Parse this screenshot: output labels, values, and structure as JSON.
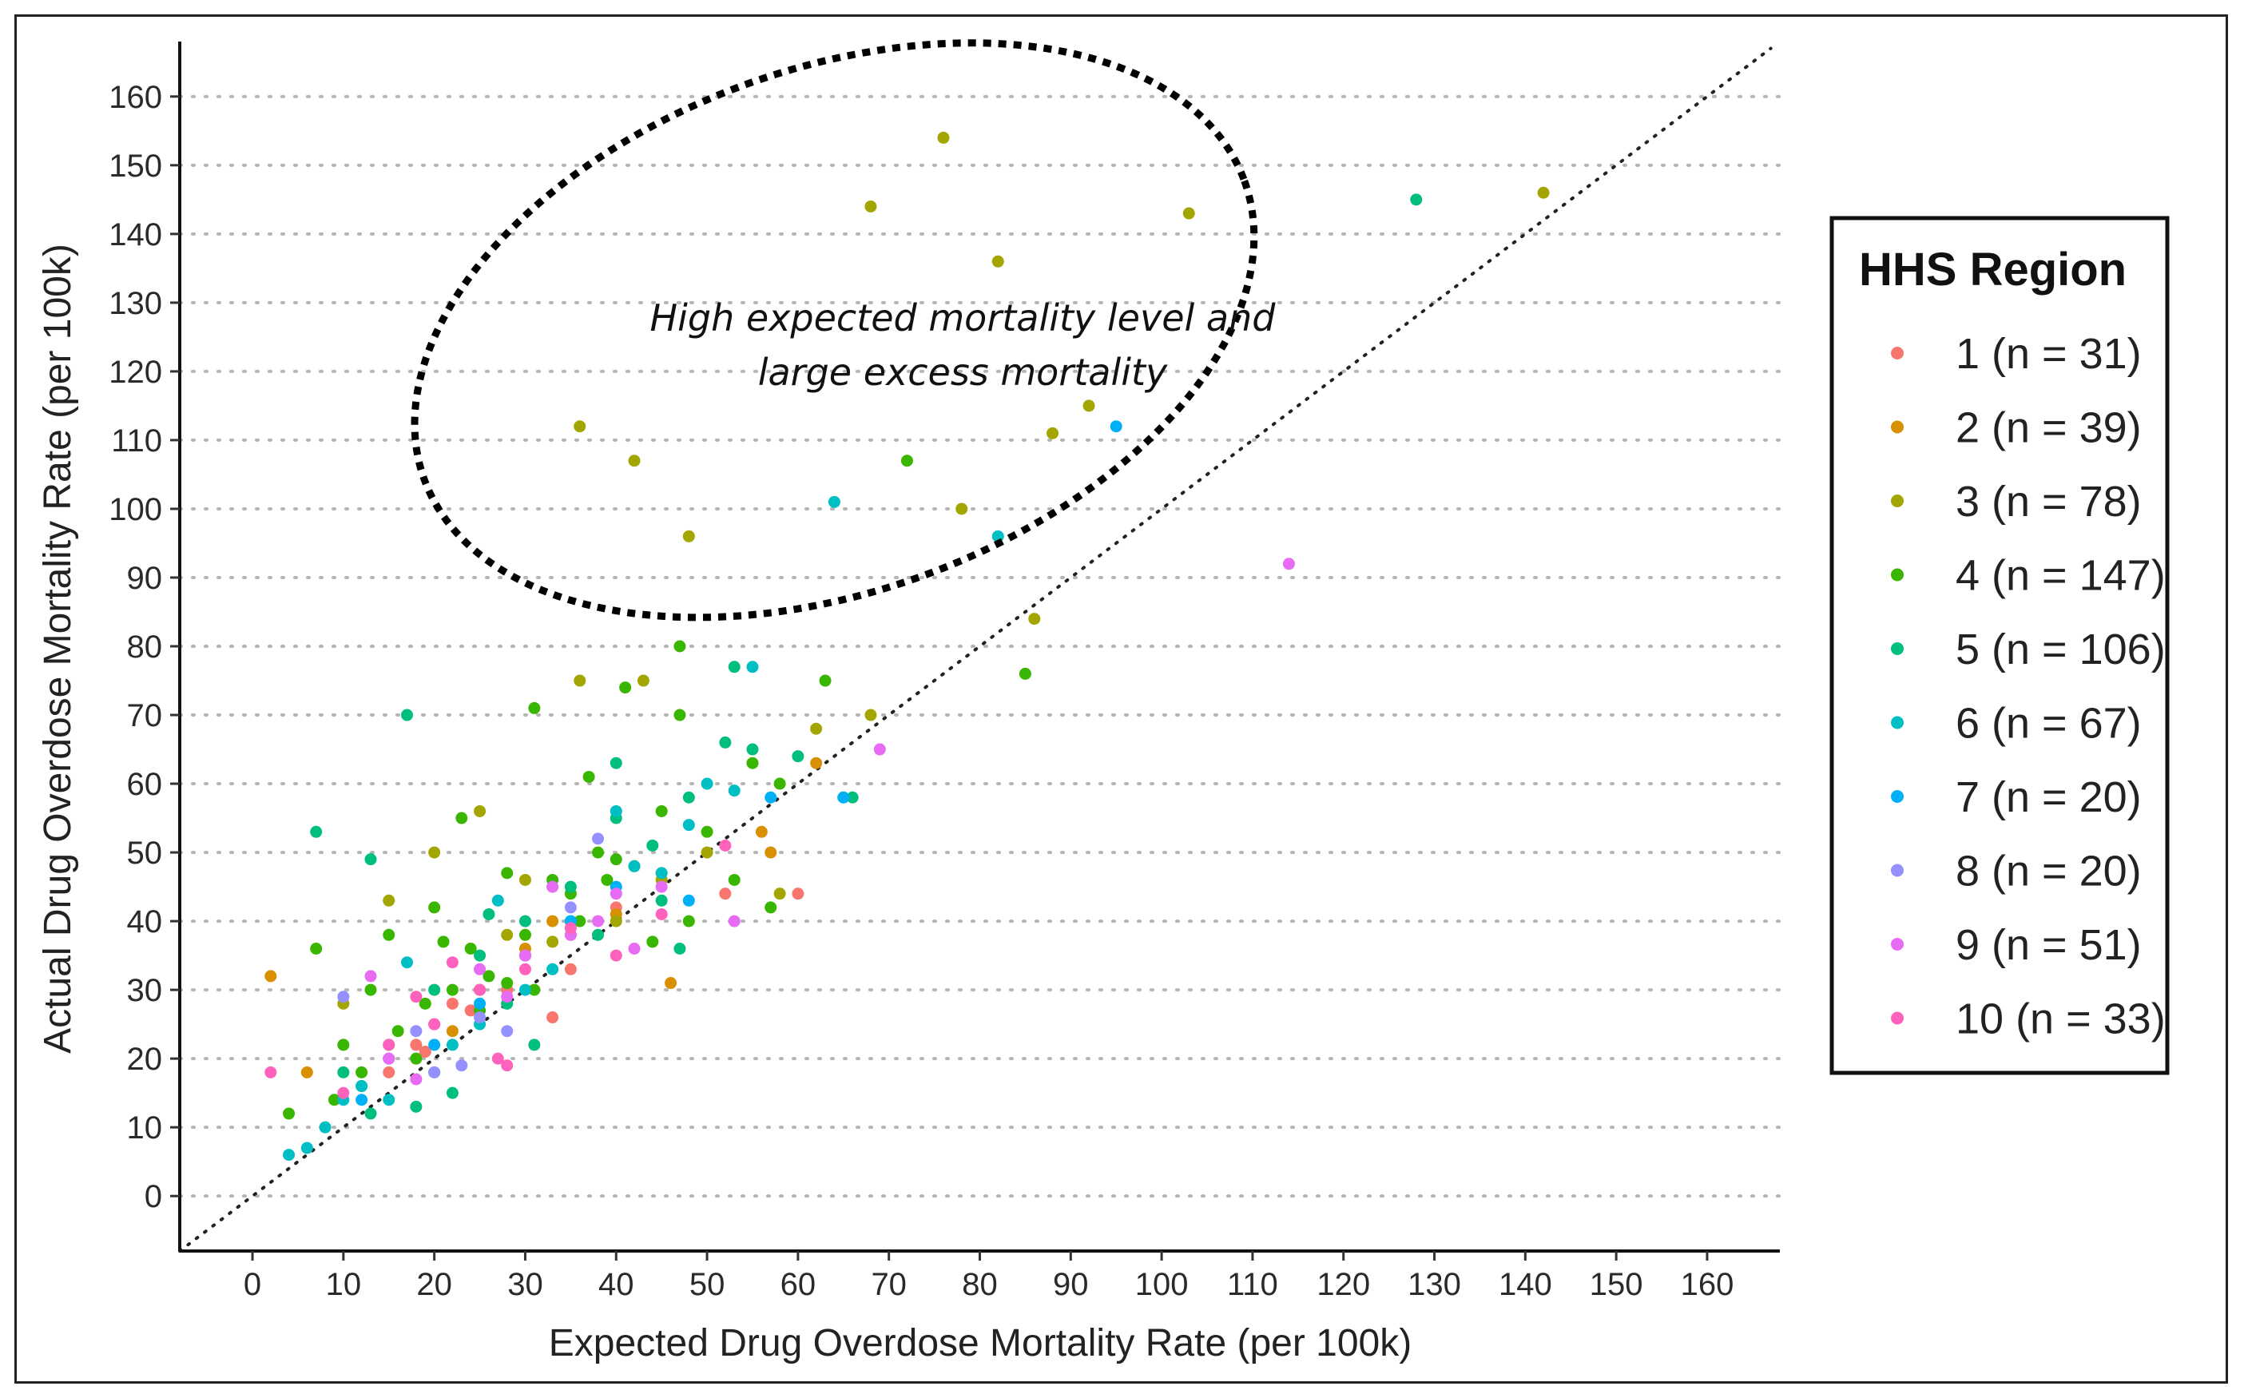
{
  "chart_data": {
    "type": "scatter",
    "xlabel": "Expected Drug Overdose Mortality Rate (per 100k)",
    "ylabel": "Actual Drug Overdose Mortality Rate (per 100k)",
    "xlim": [
      -8,
      168
    ],
    "ylim": [
      -8,
      168
    ],
    "xticks": [
      0,
      10,
      20,
      30,
      40,
      50,
      60,
      70,
      80,
      90,
      100,
      110,
      120,
      130,
      140,
      150,
      160
    ],
    "yticks": [
      0,
      10,
      20,
      30,
      40,
      50,
      60,
      70,
      80,
      90,
      100,
      110,
      120,
      130,
      140,
      150,
      160
    ],
    "grid": "horizontal dotted",
    "reference_line": "y = x (dotted)",
    "legend": {
      "title": "HHS Region",
      "placement": "right",
      "entries": [
        {
          "label": "1 (n = 31)",
          "color": "#F8766D"
        },
        {
          "label": "2 (n = 39)",
          "color": "#D89000"
        },
        {
          "label": "3 (n = 78)",
          "color": "#A3A500"
        },
        {
          "label": "4 (n = 147)",
          "color": "#39B600"
        },
        {
          "label": "5 (n = 106)",
          "color": "#00BF7D"
        },
        {
          "label": "6 (n = 67)",
          "color": "#00BFC4"
        },
        {
          "label": "7 (n = 20)",
          "color": "#00B0F6"
        },
        {
          "label": "8 (n = 20)",
          "color": "#9590FF"
        },
        {
          "label": "9 (n = 51)",
          "color": "#E76BF3"
        },
        {
          "label": "10 (n = 33)",
          "color": "#FF62BC"
        }
      ]
    },
    "annotation": {
      "lines": [
        "High expected mortality level and",
        "large excess mortality"
      ],
      "ellipse_center": [
        64,
        126
      ],
      "ellipse_radii": [
        48,
        38
      ],
      "ellipse_rotation_deg": -20
    },
    "series": [
      {
        "region": 1,
        "points": [
          [
            20,
            25
          ],
          [
            22,
            28
          ],
          [
            25,
            30
          ],
          [
            18,
            22
          ],
          [
            30,
            35
          ],
          [
            35,
            33
          ],
          [
            28,
            30
          ],
          [
            15,
            18
          ],
          [
            40,
            42
          ],
          [
            45,
            47
          ],
          [
            52,
            44
          ],
          [
            60,
            44
          ],
          [
            33,
            26
          ],
          [
            24,
            27
          ],
          [
            19,
            21
          ]
        ]
      },
      {
        "region": 2,
        "points": [
          [
            2,
            32
          ],
          [
            6,
            18
          ],
          [
            30,
            36
          ],
          [
            35,
            38
          ],
          [
            40,
            41
          ],
          [
            46,
            31
          ],
          [
            56,
            53
          ],
          [
            57,
            50
          ],
          [
            62,
            63
          ],
          [
            25,
            30
          ],
          [
            22,
            24
          ],
          [
            33,
            40
          ]
        ]
      },
      {
        "region": 3,
        "points": [
          [
            36,
            112
          ],
          [
            42,
            107
          ],
          [
            48,
            96
          ],
          [
            68,
            144
          ],
          [
            76,
            154
          ],
          [
            82,
            136
          ],
          [
            88,
            111
          ],
          [
            92,
            115
          ],
          [
            103,
            143
          ],
          [
            142,
            146
          ],
          [
            78,
            100
          ],
          [
            86,
            84
          ],
          [
            68,
            70
          ],
          [
            36,
            75
          ],
          [
            43,
            75
          ],
          [
            25,
            56
          ],
          [
            30,
            46
          ],
          [
            20,
            50
          ],
          [
            15,
            43
          ],
          [
            40,
            40
          ],
          [
            45,
            46
          ],
          [
            50,
            50
          ],
          [
            62,
            68
          ],
          [
            58,
            44
          ],
          [
            10,
            28
          ],
          [
            28,
            38
          ],
          [
            33,
            37
          ]
        ]
      },
      {
        "region": 4,
        "points": [
          [
            72,
            107
          ],
          [
            47,
            80
          ],
          [
            85,
            76
          ],
          [
            41,
            74
          ],
          [
            31,
            71
          ],
          [
            37,
            61
          ],
          [
            23,
            55
          ],
          [
            28,
            47
          ],
          [
            20,
            42
          ],
          [
            15,
            38
          ],
          [
            7,
            36
          ],
          [
            10,
            22
          ],
          [
            12,
            16
          ],
          [
            18,
            20
          ],
          [
            25,
            27
          ],
          [
            30,
            38
          ],
          [
            35,
            44
          ],
          [
            38,
            50
          ],
          [
            40,
            49
          ],
          [
            45,
            56
          ],
          [
            47,
            70
          ],
          [
            48,
            40
          ],
          [
            55,
            63
          ],
          [
            57,
            42
          ],
          [
            63,
            75
          ],
          [
            13,
            30
          ],
          [
            21,
            37
          ],
          [
            26,
            32
          ],
          [
            33,
            46
          ],
          [
            9,
            14
          ],
          [
            16,
            24
          ],
          [
            22,
            30
          ],
          [
            28,
            31
          ],
          [
            36,
            40
          ],
          [
            42,
            48
          ],
          [
            50,
            53
          ],
          [
            53,
            46
          ],
          [
            4,
            12
          ],
          [
            12,
            18
          ],
          [
            19,
            28
          ],
          [
            24,
            36
          ],
          [
            31,
            30
          ],
          [
            39,
            46
          ],
          [
            44,
            37
          ],
          [
            58,
            60
          ]
        ]
      },
      {
        "region": 5,
        "points": [
          [
            128,
            145
          ],
          [
            53,
            77
          ],
          [
            17,
            70
          ],
          [
            7,
            53
          ],
          [
            13,
            49
          ],
          [
            45,
            43
          ],
          [
            47,
            36
          ],
          [
            40,
            55
          ],
          [
            52,
            66
          ],
          [
            55,
            65
          ],
          [
            66,
            58
          ],
          [
            30,
            40
          ],
          [
            20,
            30
          ],
          [
            15,
            22
          ],
          [
            10,
            18
          ],
          [
            25,
            35
          ],
          [
            35,
            45
          ],
          [
            44,
            51
          ],
          [
            60,
            64
          ],
          [
            18,
            13
          ],
          [
            28,
            28
          ],
          [
            38,
            38
          ],
          [
            48,
            58
          ],
          [
            31,
            22
          ],
          [
            22,
            15
          ],
          [
            13,
            12
          ],
          [
            40,
            63
          ],
          [
            26,
            41
          ]
        ]
      },
      {
        "region": 6,
        "points": [
          [
            64,
            101
          ],
          [
            82,
            96
          ],
          [
            55,
            77
          ],
          [
            4,
            6
          ],
          [
            6,
            7
          ],
          [
            8,
            10
          ],
          [
            10,
            14
          ],
          [
            12,
            16
          ],
          [
            15,
            14
          ],
          [
            20,
            18
          ],
          [
            22,
            22
          ],
          [
            25,
            25
          ],
          [
            30,
            30
          ],
          [
            35,
            40
          ],
          [
            40,
            56
          ],
          [
            45,
            47
          ],
          [
            50,
            60
          ],
          [
            53,
            59
          ],
          [
            65,
            58
          ],
          [
            17,
            34
          ],
          [
            27,
            43
          ],
          [
            33,
            33
          ],
          [
            42,
            48
          ],
          [
            48,
            54
          ]
        ]
      },
      {
        "region": 7,
        "points": [
          [
            95,
            112
          ],
          [
            57,
            58
          ],
          [
            65,
            58
          ],
          [
            20,
            22
          ],
          [
            30,
            35
          ],
          [
            40,
            45
          ],
          [
            48,
            43
          ],
          [
            12,
            14
          ],
          [
            25,
            28
          ],
          [
            35,
            40
          ]
        ]
      },
      {
        "region": 8,
        "points": [
          [
            15,
            20
          ],
          [
            18,
            24
          ],
          [
            20,
            18
          ],
          [
            25,
            26
          ],
          [
            30,
            35
          ],
          [
            35,
            42
          ],
          [
            38,
            52
          ],
          [
            10,
            29
          ],
          [
            23,
            19
          ],
          [
            28,
            24
          ]
        ]
      },
      {
        "region": 9,
        "points": [
          [
            114,
            92
          ],
          [
            69,
            65
          ],
          [
            53,
            40
          ],
          [
            30,
            35
          ],
          [
            35,
            38
          ],
          [
            40,
            44
          ],
          [
            45,
            45
          ],
          [
            20,
            25
          ],
          [
            15,
            20
          ],
          [
            25,
            33
          ],
          [
            13,
            32
          ],
          [
            33,
            45
          ],
          [
            42,
            36
          ],
          [
            38,
            40
          ],
          [
            18,
            17
          ],
          [
            28,
            29
          ]
        ]
      },
      {
        "region": 10,
        "points": [
          [
            2,
            18
          ],
          [
            10,
            15
          ],
          [
            15,
            22
          ],
          [
            20,
            25
          ],
          [
            25,
            30
          ],
          [
            27,
            20
          ],
          [
            30,
            33
          ],
          [
            35,
            39
          ],
          [
            40,
            35
          ],
          [
            45,
            41
          ],
          [
            52,
            51
          ],
          [
            28,
            19
          ],
          [
            22,
            34
          ],
          [
            18,
            29
          ]
        ]
      }
    ]
  }
}
